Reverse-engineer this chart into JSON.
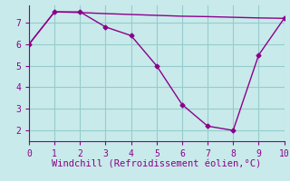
{
  "line1_x": [
    0,
    1,
    2,
    3,
    4,
    5,
    6,
    7,
    8,
    9,
    10
  ],
  "line1_y": [
    6.0,
    7.5,
    7.5,
    6.8,
    6.4,
    5.0,
    3.2,
    2.2,
    2.0,
    5.5,
    7.2
  ],
  "line2_x": [
    0,
    1,
    2,
    3,
    4,
    5,
    6,
    7,
    8,
    9,
    10
  ],
  "line2_y": [
    6.0,
    7.5,
    7.47,
    7.42,
    7.38,
    7.34,
    7.3,
    7.28,
    7.25,
    7.22,
    7.2
  ],
  "line_color": "#8b008b",
  "bg_color": "#c8eaea",
  "grid_color": "#96cccc",
  "xlabel": "Windchill (Refroidissement éolien,°C)",
  "xlim": [
    0,
    10
  ],
  "ylim": [
    1.5,
    7.8
  ],
  "xticks": [
    0,
    1,
    2,
    3,
    4,
    5,
    6,
    7,
    8,
    9,
    10
  ],
  "yticks": [
    2,
    3,
    4,
    5,
    6,
    7
  ],
  "xlabel_fontsize": 7.5,
  "tick_fontsize": 7,
  "marker": "D",
  "markersize": 2.5,
  "linewidth": 1.0
}
